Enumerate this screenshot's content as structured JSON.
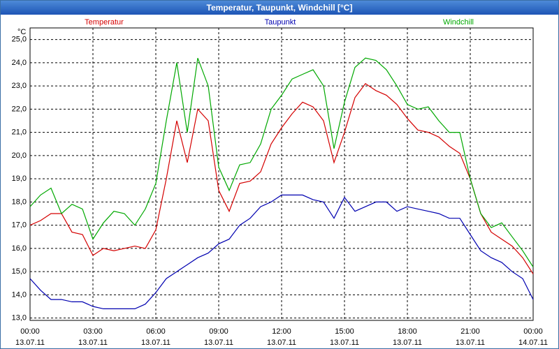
{
  "chart_data": {
    "type": "line",
    "title": "Temperatur, Taupunkt, Windchill [°C]",
    "y_unit": "°C",
    "x": [
      0,
      0.5,
      1,
      1.5,
      2,
      2.5,
      3,
      3.5,
      4,
      4.5,
      5,
      5.5,
      6,
      6.5,
      7,
      7.5,
      8,
      8.5,
      9,
      9.5,
      10,
      10.5,
      11,
      11.5,
      12,
      12.5,
      13,
      13.5,
      14,
      14.5,
      15,
      15.5,
      16,
      16.5,
      17,
      17.5,
      18,
      18.5,
      19,
      19.5,
      20,
      20.5,
      21,
      21.5,
      22,
      22.5,
      23,
      23.5,
      24
    ],
    "series": [
      {
        "name": "Temperatur",
        "color": "#d40000",
        "values": [
          17.0,
          17.2,
          17.5,
          17.5,
          16.7,
          16.6,
          15.7,
          16.0,
          15.9,
          16.0,
          16.1,
          16.0,
          16.8,
          19.0,
          21.5,
          19.7,
          22.0,
          21.5,
          18.5,
          17.6,
          18.8,
          18.9,
          19.3,
          20.5,
          21.2,
          21.8,
          22.3,
          22.1,
          21.5,
          19.7,
          21.0,
          22.5,
          23.1,
          22.8,
          22.6,
          22.2,
          21.6,
          21.1,
          21.0,
          20.8,
          20.4,
          20.1,
          19.0,
          17.5,
          16.7,
          16.4,
          16.1,
          15.6,
          14.9
        ]
      },
      {
        "name": "Taupunkt",
        "color": "#0000b0",
        "values": [
          14.7,
          14.2,
          13.8,
          13.8,
          13.7,
          13.7,
          13.5,
          13.4,
          13.4,
          13.4,
          13.4,
          13.6,
          14.1,
          14.7,
          15.0,
          15.3,
          15.6,
          15.8,
          16.2,
          16.4,
          17.0,
          17.3,
          17.8,
          18.0,
          18.3,
          18.3,
          18.3,
          18.1,
          18.0,
          17.3,
          18.2,
          17.6,
          17.8,
          18.0,
          18.0,
          17.6,
          17.8,
          17.7,
          17.6,
          17.5,
          17.3,
          17.3,
          16.6,
          15.9,
          15.6,
          15.4,
          15.0,
          14.7,
          13.8
        ]
      },
      {
        "name": "Windchill",
        "color": "#00a800",
        "values": [
          17.8,
          18.3,
          18.6,
          17.5,
          17.9,
          17.7,
          16.4,
          17.1,
          17.6,
          17.5,
          17.0,
          17.7,
          18.8,
          21.5,
          24.0,
          21.0,
          24.2,
          23.0,
          19.5,
          18.5,
          19.6,
          19.7,
          20.5,
          22.0,
          22.6,
          23.3,
          23.5,
          23.7,
          23.0,
          20.3,
          22.3,
          23.8,
          24.2,
          24.1,
          23.7,
          23.0,
          22.2,
          22.0,
          22.1,
          21.5,
          21.0,
          21.0,
          19.0,
          17.5,
          16.9,
          17.1,
          16.5,
          15.9,
          15.2
        ]
      }
    ],
    "xlim": [
      0,
      24
    ],
    "xticks": [
      {
        "value": 0,
        "label": "00:00"
      },
      {
        "value": 3,
        "label": "03:00"
      },
      {
        "value": 6,
        "label": "06:00"
      },
      {
        "value": 9,
        "label": "09:00"
      },
      {
        "value": 12,
        "label": "12:00"
      },
      {
        "value": 15,
        "label": "15:00"
      },
      {
        "value": 18,
        "label": "18:00"
      },
      {
        "value": 21,
        "label": "21:00"
      },
      {
        "value": 24,
        "label": "00:00"
      }
    ],
    "xtick_dates": [
      "13.07.11",
      "13.07.11",
      "13.07.11",
      "13.07.11",
      "13.07.11",
      "13.07.11",
      "13.07.11",
      "13.07.11",
      "14.07.11"
    ],
    "ylim": [
      12.9,
      25.5
    ],
    "yticks": [
      {
        "value": 13,
        "label": "13,0"
      },
      {
        "value": 14,
        "label": "14,0"
      },
      {
        "value": 15,
        "label": "15,0"
      },
      {
        "value": 16,
        "label": "16,0"
      },
      {
        "value": 17,
        "label": "17,0"
      },
      {
        "value": 18,
        "label": "18,0"
      },
      {
        "value": 19,
        "label": "19,0"
      },
      {
        "value": 20,
        "label": "20,0"
      },
      {
        "value": 21,
        "label": "21,0"
      },
      {
        "value": 22,
        "label": "22,0"
      },
      {
        "value": 23,
        "label": "23,0"
      },
      {
        "value": 24,
        "label": "24,0"
      },
      {
        "value": 25,
        "label": "25,0"
      }
    ],
    "grid": true
  }
}
